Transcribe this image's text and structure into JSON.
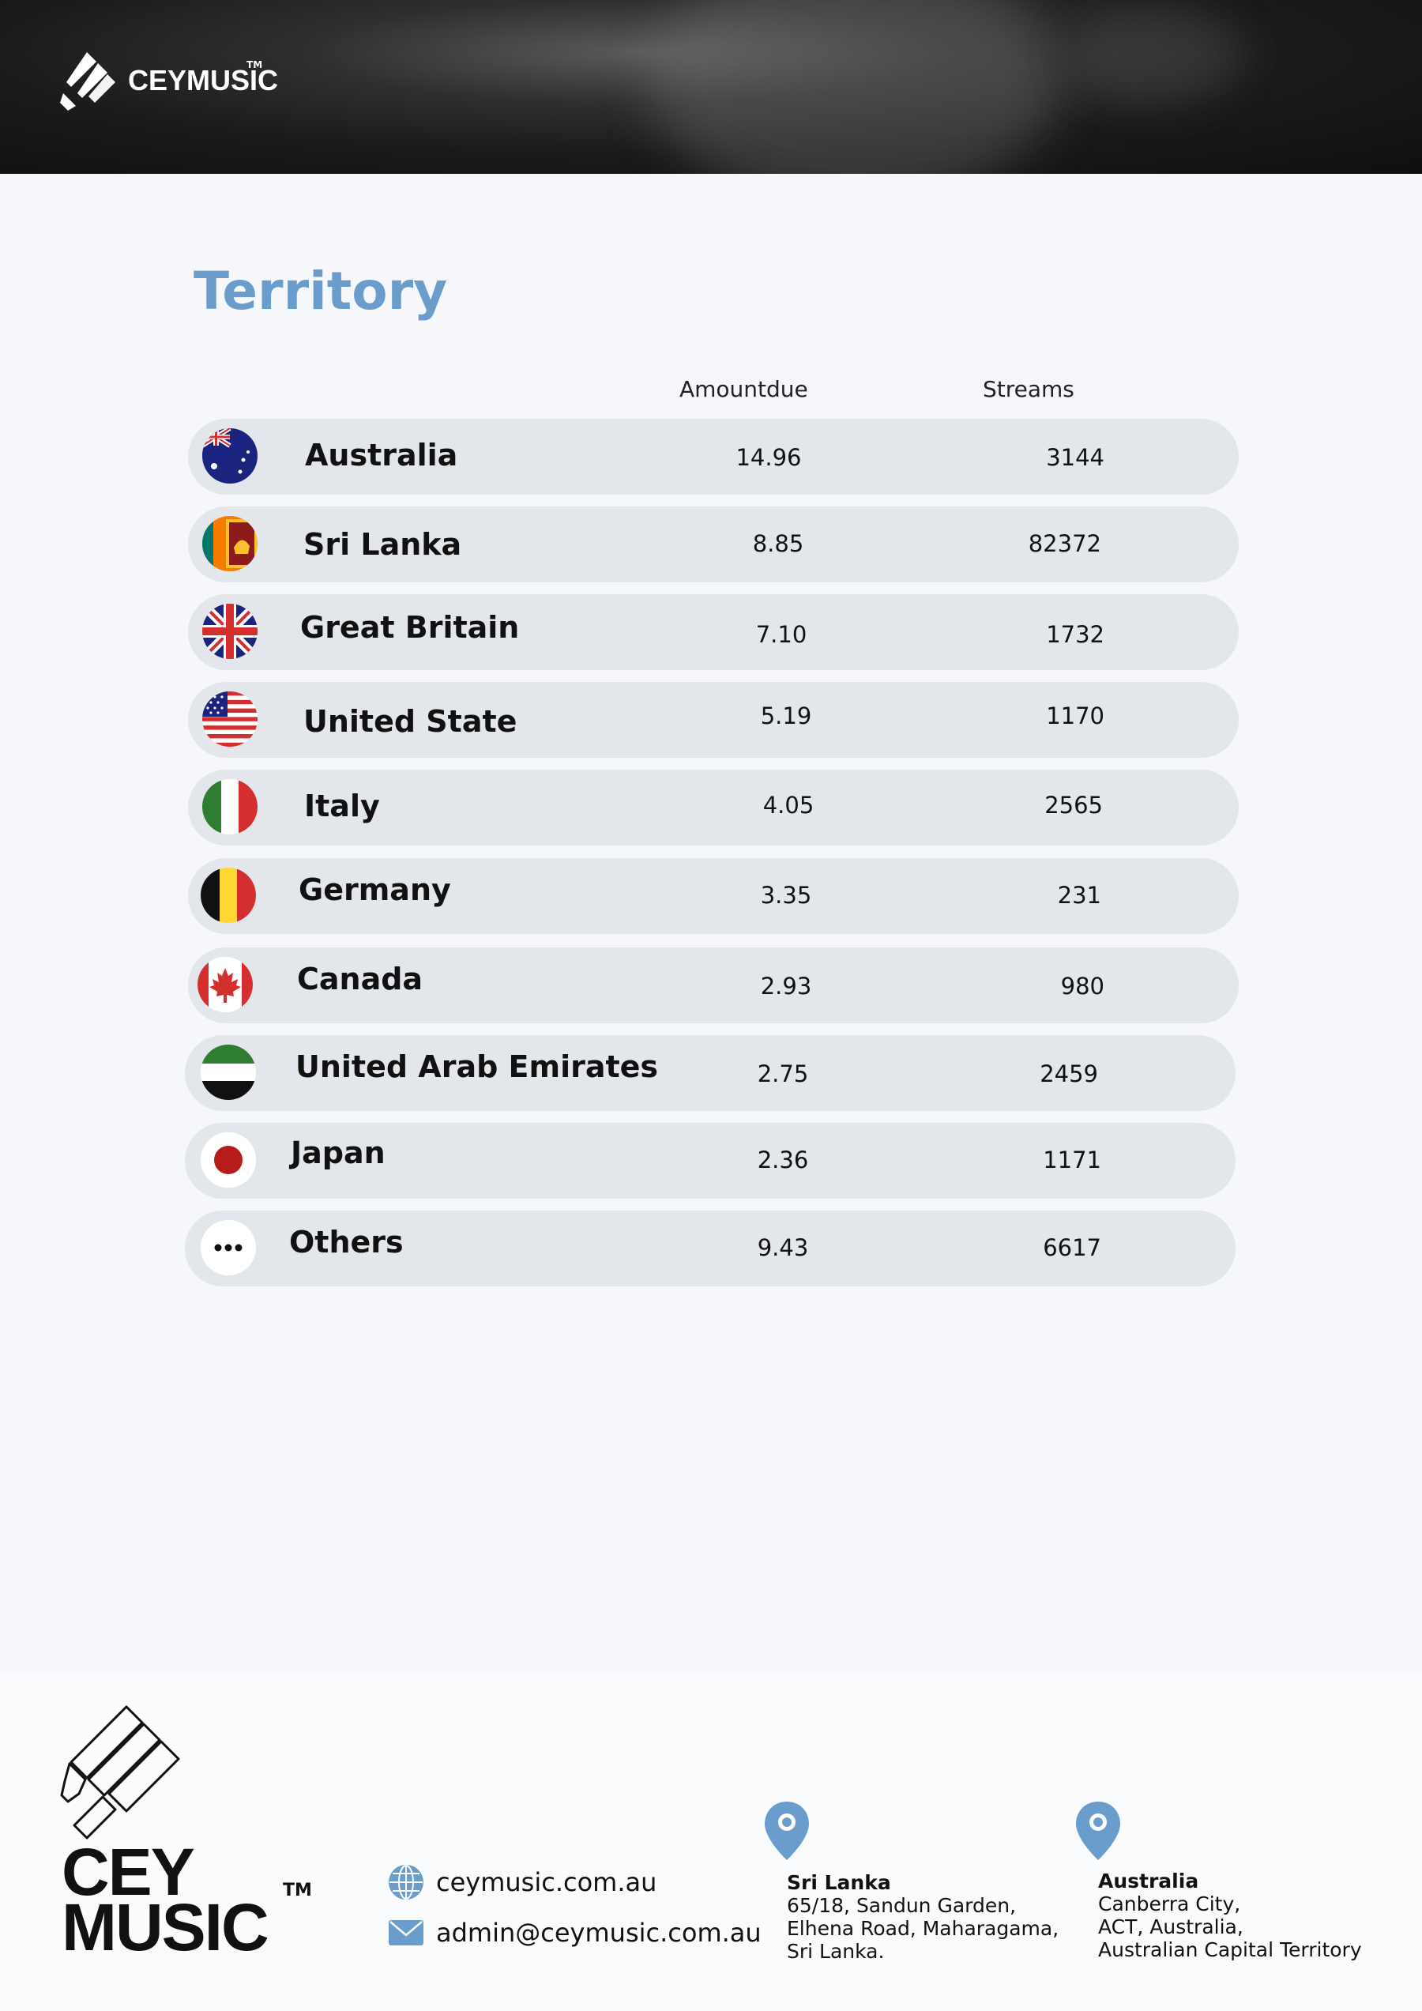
{
  "brand": {
    "name": "CEYMUSIC",
    "tm": "TM",
    "footer_word_1": "CEY",
    "footer_word_2": "MUSIC"
  },
  "page_title": "Territory",
  "columns": {
    "amount": "Amountdue",
    "streams": "Streams"
  },
  "rows": [
    {
      "country": "Australia",
      "amount": "14.96",
      "streams": "3144",
      "flag": "australia-flag-icon"
    },
    {
      "country": "Sri Lanka",
      "amount": "8.85",
      "streams": "82372",
      "flag": "sri-lanka-flag-icon"
    },
    {
      "country": "Great Britain",
      "amount": "7.10",
      "streams": "1732",
      "flag": "uk-flag-icon"
    },
    {
      "country": "United State",
      "amount": "5.19",
      "streams": "1170",
      "flag": "us-flag-icon"
    },
    {
      "country": "Italy",
      "amount": "4.05",
      "streams": "2565",
      "flag": "italy-flag-icon"
    },
    {
      "country": "Germany",
      "amount": "3.35",
      "streams": "231",
      "flag": "belgium-style-flag-icon"
    },
    {
      "country": "Canada",
      "amount": "2.93",
      "streams": "980",
      "flag": "canada-flag-icon"
    },
    {
      "country": "United Arab Emirates",
      "amount": "2.75",
      "streams": "2459",
      "flag": "uae-flag-icon"
    },
    {
      "country": "Japan",
      "amount": "2.36",
      "streams": "1171",
      "flag": "japan-flag-icon"
    },
    {
      "country": "Others",
      "amount": "9.43",
      "streams": "6617",
      "flag": "more-dots-icon"
    }
  ],
  "contact": {
    "website": "ceymusic.com.au",
    "email": "admin@ceymusic.com.au"
  },
  "offices": [
    {
      "head": "Sri Lanka",
      "lines": [
        "65/18, Sandun Garden,",
        "Elhena Road, Maharagama,",
        "Sri Lanka."
      ]
    },
    {
      "head": "Australia",
      "lines": [
        "Canberra City,",
        "ACT, Australia,",
        "Australian Capital Territory"
      ]
    }
  ],
  "colors": {
    "accent": "#6a9dcc",
    "row_bg": "#e3e6ea",
    "page_bg": "#f5f7fb"
  }
}
